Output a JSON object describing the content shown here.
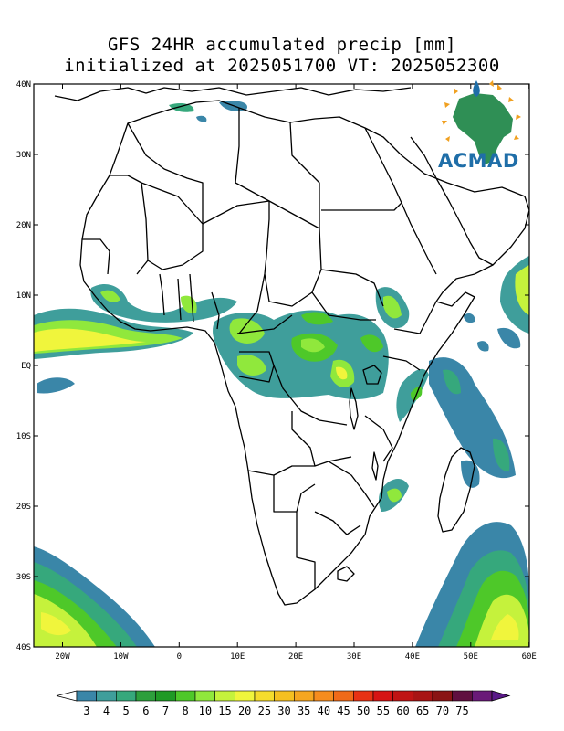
{
  "title": {
    "line1": "GFS 24HR accumulated precip [mm]",
    "line2": "initialized at 2025051700 VT: 2025052300"
  },
  "map": {
    "lat_labels": [
      "40N",
      "30N",
      "20N",
      "10N",
      "EQ",
      "10S",
      "20S",
      "30S",
      "40S"
    ],
    "lon_labels": [
      "20W",
      "10W",
      "0",
      "10E",
      "20E",
      "30E",
      "40E",
      "50E",
      "60E"
    ]
  },
  "colorbar": {
    "labels": [
      "3",
      "4",
      "5",
      "6",
      "7",
      "8",
      "10",
      "15",
      "20",
      "25",
      "30",
      "35",
      "40",
      "45",
      "50",
      "55",
      "60",
      "65",
      "70",
      "75"
    ],
    "colors": [
      "#3a86a8",
      "#3f9e9b",
      "#36a87c",
      "#2d9f3c",
      "#1f9a25",
      "#4ec829",
      "#90e83c",
      "#c5f23c",
      "#f0f53c",
      "#f5dc2c",
      "#f5c020",
      "#f5a620",
      "#f58c1e",
      "#f06a18",
      "#e83214",
      "#d61414",
      "#c01414",
      "#a81414",
      "#8a1414",
      "#601040",
      "#6a1a78"
    ]
  },
  "logo": {
    "text": "ACMAD",
    "icon": "africa-globe-icon"
  }
}
